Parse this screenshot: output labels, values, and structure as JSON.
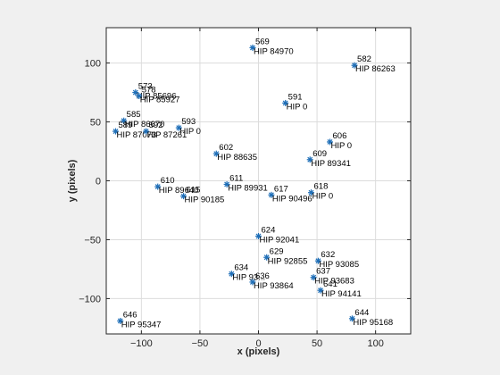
{
  "chart_data": {
    "type": "scatter",
    "xlabel": "x (pixels)",
    "ylabel": "y (pixels)",
    "xlim": [
      -130,
      130
    ],
    "ylim": [
      -130,
      130
    ],
    "xticks": [
      -100,
      -50,
      0,
      50,
      100
    ],
    "yticks": [
      -100,
      -50,
      0,
      50,
      100
    ],
    "grid": true,
    "marker_color": "#1f6fb8",
    "points": [
      {
        "x": -5,
        "y": 113,
        "id": "569",
        "hip": "HIP 84970"
      },
      {
        "x": 82,
        "y": 98,
        "id": "582",
        "hip": "HIP 86263"
      },
      {
        "x": -105,
        "y": 75,
        "id": "573",
        "hip": "HIP 85696"
      },
      {
        "x": -102,
        "y": 72,
        "id": "578",
        "hip": "HIP 85927"
      },
      {
        "x": 23,
        "y": 66,
        "id": "591",
        "hip": "HIP 0"
      },
      {
        "x": -115,
        "y": 51,
        "id": "585",
        "hip": "HIP 86670"
      },
      {
        "x": -122,
        "y": 42,
        "id": "589",
        "hip": "HIP 87073"
      },
      {
        "x": -96,
        "y": 42,
        "id": "592",
        "hip": "HIP 87261"
      },
      {
        "x": -68,
        "y": 45,
        "id": "593",
        "hip": "HIP 0"
      },
      {
        "x": 61,
        "y": 33,
        "id": "606",
        "hip": "HIP 0"
      },
      {
        "x": -36,
        "y": 23,
        "id": "602",
        "hip": "HIP 88635"
      },
      {
        "x": 44,
        "y": 18,
        "id": "609",
        "hip": "HIP 89341"
      },
      {
        "x": -86,
        "y": -5,
        "id": "610",
        "hip": "HIP 89640"
      },
      {
        "x": -64,
        "y": -13,
        "id": "615",
        "hip": "HIP 90185"
      },
      {
        "x": -27,
        "y": -3,
        "id": "611",
        "hip": "HIP 89931"
      },
      {
        "x": 11,
        "y": -12,
        "id": "617",
        "hip": "HIP 90496"
      },
      {
        "x": 45,
        "y": -10,
        "id": "618",
        "hip": "HIP 0"
      },
      {
        "x": 0,
        "y": -47,
        "id": "624",
        "hip": "HIP 92041"
      },
      {
        "x": 7,
        "y": -65,
        "id": "629",
        "hip": "HIP 92855"
      },
      {
        "x": 51,
        "y": -68,
        "id": "632",
        "hip": "HIP 93085"
      },
      {
        "x": -23,
        "y": -79,
        "id": "634",
        "hip": "HIP 93..."
      },
      {
        "x": -5,
        "y": -86,
        "id": "636",
        "hip": "HIP 93864"
      },
      {
        "x": 47,
        "y": -82,
        "id": "637",
        "hip": "HIP 93683"
      },
      {
        "x": 53,
        "y": -93,
        "id": "641",
        "hip": "HIP 94141"
      },
      {
        "x": -118,
        "y": -119,
        "id": "646",
        "hip": "HIP 95347"
      },
      {
        "x": 80,
        "y": -117,
        "id": "644",
        "hip": "HIP 95168"
      }
    ]
  }
}
